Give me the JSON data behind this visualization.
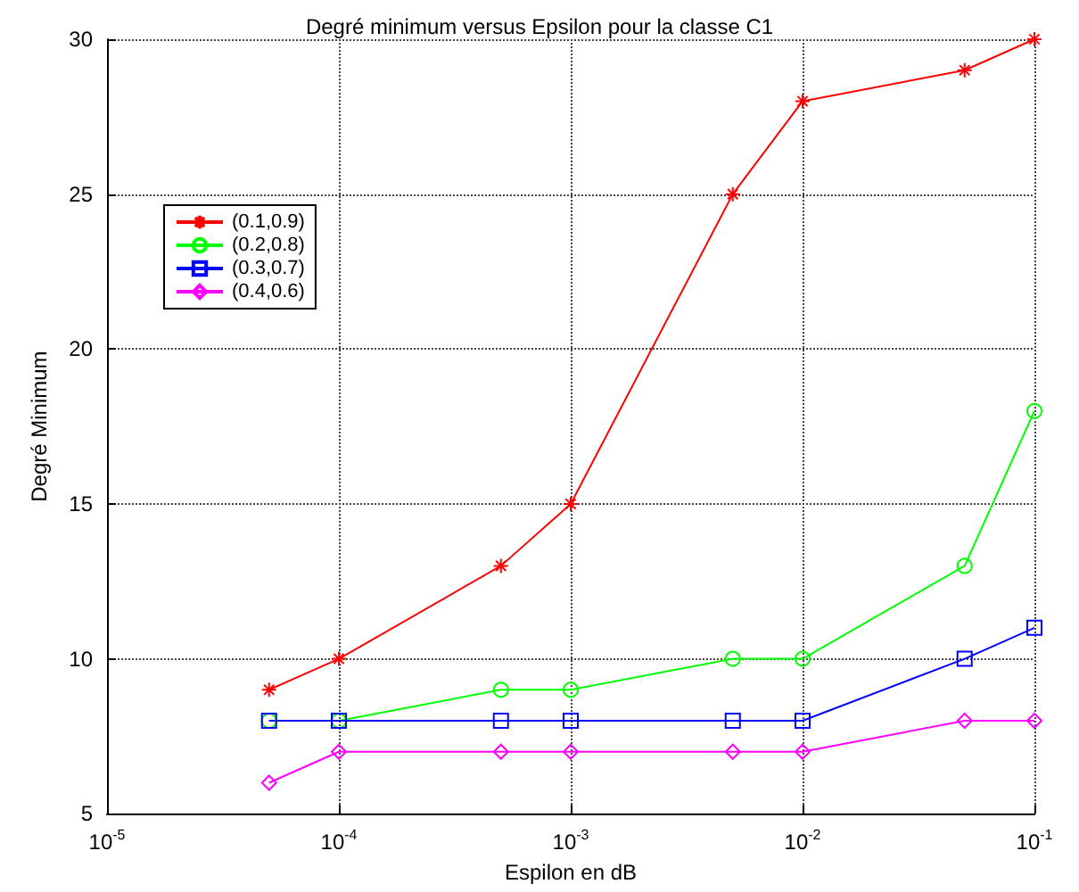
{
  "chart_data": {
    "type": "line",
    "title": "Degré minimum versus Epsilon pour la classe C1",
    "xlabel": "Espilon en dB",
    "ylabel": "Degré Minimum",
    "x": [
      5e-05,
      0.0001,
      0.0005,
      0.001,
      0.005,
      0.01,
      0.05,
      0.1
    ],
    "series": [
      {
        "name": "(0.1,0.9)",
        "color": "#ff0000",
        "marker": "cross",
        "values": [
          9,
          10,
          13,
          15,
          25,
          28,
          29,
          30
        ]
      },
      {
        "name": "(0.2,0.8)",
        "color": "#00ff00",
        "marker": "circle",
        "values": [
          8,
          8,
          9,
          9,
          10,
          10,
          13,
          18
        ]
      },
      {
        "name": "(0.3,0.7)",
        "color": "#0000ff",
        "marker": "square",
        "values": [
          8,
          8,
          8,
          8,
          8,
          8,
          10,
          11
        ]
      },
      {
        "name": "(0.4,0.6)",
        "color": "#ff00ff",
        "marker": "diamond",
        "values": [
          6,
          7,
          7,
          7,
          7,
          7,
          8,
          8
        ]
      }
    ],
    "log": "x",
    "xlim": [
      1e-05,
      0.1
    ],
    "xticks": [
      {
        "value": 1e-05,
        "label": "10$^{-5}$"
      },
      {
        "value": 0.0001,
        "label": "10$^{-4}$"
      },
      {
        "value": 0.001,
        "label": "10$^{-3}$"
      },
      {
        "value": 0.01,
        "label": "10$^{-2}$"
      },
      {
        "value": 0.1,
        "label": "10$^{-1}$"
      }
    ],
    "ylim": [
      5,
      30
    ],
    "yticks": [
      5,
      10,
      15,
      20,
      25,
      30
    ],
    "grid": true,
    "legend": "top left",
    "line_style": "solid"
  }
}
